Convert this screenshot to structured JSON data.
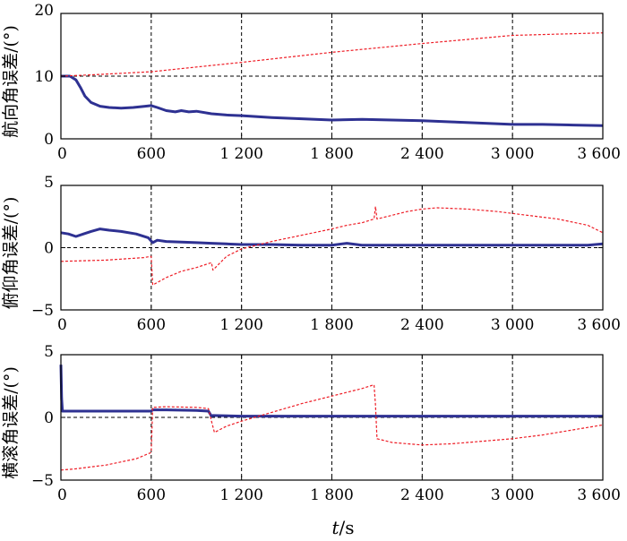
{
  "xlabel": {
    "var": "t",
    "sep": "/",
    "unit": "s"
  },
  "colors": {
    "blue": "#2e3192",
    "red": "#ee1c25",
    "grid": "#000000"
  },
  "chart_data": [
    {
      "type": "line",
      "ylabel": "航向角误差/(°)",
      "xlim": [
        0,
        3600
      ],
      "ylim": [
        0,
        20
      ],
      "xticks": [
        0,
        600,
        1200,
        1800,
        2400,
        3000,
        3600
      ],
      "xtick_labels": [
        "0",
        "600",
        "1 200",
        "1 800",
        "2 400",
        "3 000",
        "3 600"
      ],
      "yticks": [
        0,
        10,
        20
      ],
      "ytick_labels": [
        "0",
        "10",
        "20"
      ],
      "grid": true,
      "series": [
        {
          "style": "solid",
          "color": "#2e3192",
          "x": [
            0,
            60,
            100,
            130,
            160,
            200,
            260,
            320,
            400,
            480,
            560,
            600,
            640,
            700,
            760,
            800,
            850,
            900,
            1000,
            1100,
            1200,
            1400,
            1600,
            1800,
            2000,
            2200,
            2400,
            2600,
            2800,
            3000,
            3200,
            3400,
            3600
          ],
          "y": [
            10.0,
            10.0,
            9.4,
            8.2,
            6.8,
            5.8,
            5.2,
            5.0,
            4.9,
            5.0,
            5.2,
            5.3,
            5.0,
            4.5,
            4.3,
            4.5,
            4.3,
            4.4,
            4.0,
            3.8,
            3.7,
            3.4,
            3.2,
            3.0,
            3.1,
            3.0,
            2.9,
            2.7,
            2.5,
            2.3,
            2.3,
            2.2,
            2.1
          ]
        },
        {
          "style": "dashed",
          "color": "#ee1c25",
          "x": [
            0,
            200,
            600,
            1200,
            1800,
            2400,
            3000,
            3600
          ],
          "y": [
            10.0,
            10.2,
            10.7,
            12.2,
            13.8,
            15.2,
            16.5,
            16.9
          ]
        }
      ]
    },
    {
      "type": "line",
      "ylabel": "俯仰角误差/(°)",
      "xlim": [
        0,
        3600
      ],
      "ylim": [
        -5,
        5
      ],
      "xticks": [
        0,
        600,
        1200,
        1800,
        2400,
        3000,
        3600
      ],
      "xtick_labels": [
        "0",
        "600",
        "1 200",
        "1 800",
        "2 400",
        "3 000",
        "3 600"
      ],
      "yticks": [
        -5,
        0,
        5
      ],
      "ytick_labels": [
        "−5",
        "0",
        "5"
      ],
      "grid": true,
      "series": [
        {
          "style": "solid",
          "color": "#2e3192",
          "x": [
            0,
            50,
            100,
            150,
            200,
            260,
            320,
            400,
            500,
            580,
            610,
            640,
            700,
            800,
            900,
            1000,
            1100,
            1200,
            1400,
            1600,
            1800,
            1900,
            2000,
            2400,
            2800,
            3200,
            3500,
            3600
          ],
          "y": [
            1.2,
            1.1,
            0.9,
            1.1,
            1.3,
            1.5,
            1.4,
            1.3,
            1.1,
            0.8,
            0.4,
            0.6,
            0.5,
            0.45,
            0.4,
            0.35,
            0.3,
            0.25,
            0.25,
            0.2,
            0.2,
            0.35,
            0.2,
            0.2,
            0.2,
            0.2,
            0.2,
            0.3
          ]
        },
        {
          "style": "dashed",
          "color": "#ee1c25",
          "x": [
            0,
            300,
            550,
            600,
            610,
            700,
            800,
            900,
            1000,
            1010,
            1100,
            1200,
            1400,
            1600,
            1800,
            1900,
            2000,
            2080,
            2090,
            2100,
            2300,
            2400,
            2500,
            2700,
            2900,
            3100,
            3300,
            3500,
            3600
          ],
          "y": [
            -1.1,
            -1.0,
            -0.8,
            -0.7,
            -3.0,
            -2.4,
            -1.9,
            -1.6,
            -1.2,
            -1.8,
            -0.7,
            -0.1,
            0.5,
            1.0,
            1.5,
            1.8,
            2.0,
            2.3,
            3.3,
            2.3,
            2.9,
            3.1,
            3.2,
            3.1,
            2.9,
            2.6,
            2.3,
            1.8,
            1.2
          ]
        }
      ]
    },
    {
      "type": "line",
      "ylabel": "横滚角误差/(°)",
      "xlim": [
        0,
        3600
      ],
      "ylim": [
        -5,
        5
      ],
      "xticks": [
        0,
        600,
        1200,
        1800,
        2400,
        3000,
        3600
      ],
      "xtick_labels": [
        "0",
        "600",
        "1 200",
        "1 800",
        "2 400",
        "3 000",
        "3 600"
      ],
      "yticks": [
        -5,
        0,
        5
      ],
      "ytick_labels": [
        "−5",
        "0",
        "5"
      ],
      "grid": true,
      "series": [
        {
          "style": "solid",
          "color": "#2e3192",
          "x": [
            0,
            5,
            10,
            20,
            50,
            100,
            300,
            600,
            610,
            700,
            900,
            980,
            1000,
            1010,
            1200,
            1800,
            2400,
            3000,
            3600
          ],
          "y": [
            4.2,
            1.5,
            0.5,
            0.5,
            0.5,
            0.5,
            0.5,
            0.5,
            0.6,
            0.6,
            0.55,
            0.5,
            0.1,
            0.15,
            0.1,
            0.1,
            0.1,
            0.1,
            0.1
          ]
        },
        {
          "style": "dashed",
          "color": "#ee1c25",
          "x": [
            0,
            100,
            300,
            500,
            600,
            610,
            700,
            900,
            980,
            1000,
            1020,
            1100,
            1200,
            1400,
            1600,
            1800,
            2000,
            2080,
            2090,
            2100,
            2200,
            2400,
            2600,
            2800,
            3000,
            3200,
            3400,
            3600
          ],
          "y": [
            -4.2,
            -4.1,
            -3.8,
            -3.3,
            -2.8,
            0.8,
            0.85,
            0.8,
            0.7,
            -0.3,
            -1.2,
            -0.7,
            -0.3,
            0.4,
            1.1,
            1.7,
            2.3,
            2.6,
            1.0,
            -1.7,
            -2.0,
            -2.2,
            -2.1,
            -1.9,
            -1.7,
            -1.4,
            -1.0,
            -0.6
          ]
        }
      ]
    }
  ]
}
